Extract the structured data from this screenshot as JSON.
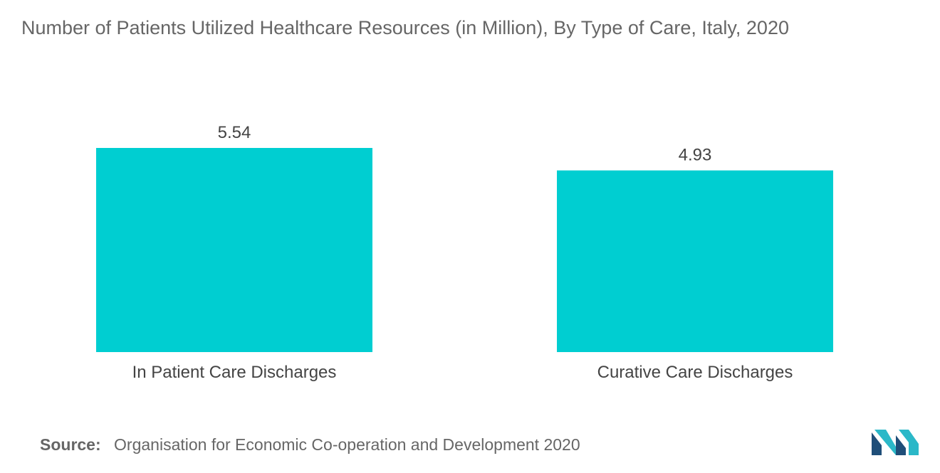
{
  "chart_data": {
    "type": "bar",
    "title": "Number of Patients Utilized Healthcare Resources (in Million), By Type of Care, Italy, 2020",
    "categories": [
      "In Patient Care Discharges",
      "Curative Care Discharges"
    ],
    "values": [
      5.54,
      4.93
    ],
    "data_labels": [
      "5.54",
      "4.93"
    ],
    "xlabel": "",
    "ylabel": "",
    "ylim": [
      0,
      5.54
    ],
    "grid": false,
    "legend": "none",
    "bar_color": "#00CED1"
  },
  "source": {
    "label": "Source:",
    "text": "Organisation for Economic Co-operation and Development 2020"
  },
  "logo": {
    "icon": "mordor-intelligence-logo-icon",
    "colors": [
      "#1f4e79",
      "#2bb8c8"
    ]
  }
}
